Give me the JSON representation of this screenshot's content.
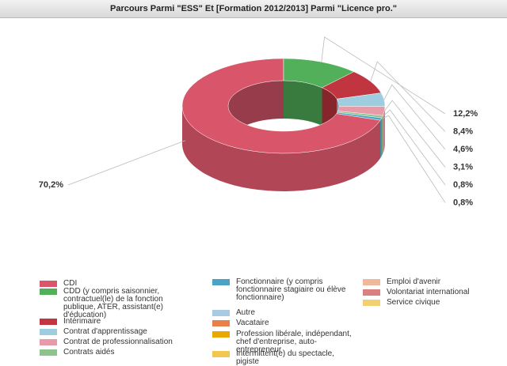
{
  "chart_data": {
    "type": "pie",
    "donut": true,
    "title": "Parcours Parmi \"ESS\" Et [Formation 2012/2013] Parmi \"Licence pro.\"",
    "categories": [
      "CDI",
      "CDD (y compris saisonnier, contractuel(le) de la fonction publique, ATER, assistant(e) d'éducation)",
      "Intérimaire",
      "Contrat d'apprentissage",
      "Contrat de professionnalisation",
      "Contrats aidés",
      "Fonctionnaire (y compris fonctionnaire stagiaire ou élève fonctionnaire)",
      "Autre",
      "Vacataire",
      "Profession libérale, indépendant, chef d'entreprise, auto-entrepreneur",
      "Intermittent(e) du spectacle, pigiste",
      "Emploi d'avenir",
      "Volontariat international",
      "Service civique"
    ],
    "values": [
      70.2,
      12.2,
      8.4,
      4.6,
      3.1,
      0.8,
      0.8,
      0,
      0,
      0,
      0,
      0,
      0,
      0
    ],
    "value_labels": [
      "70,2%",
      "12,2%",
      "8,4%",
      "4,6%",
      "3,1%",
      "0,8%",
      "0,8%",
      null,
      null,
      null,
      null,
      null,
      null,
      null
    ],
    "colors": [
      "#d9566a",
      "#52b05a",
      "#c0353f",
      "#9fcde0",
      "#e89aa8",
      "#8cc48c",
      "#4aa3c2",
      "#a6cbe3",
      "#e8804a",
      "#e8a800",
      "#f0c850",
      "#f0b89a",
      "#d98080",
      "#f0d070"
    ]
  }
}
